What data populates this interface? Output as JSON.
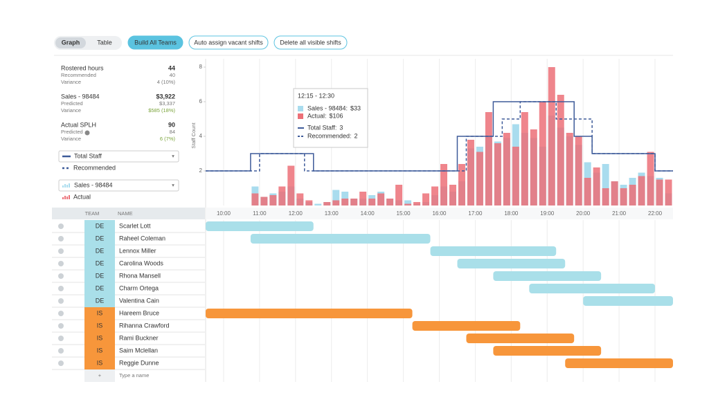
{
  "toolbar": {
    "tabs": [
      "Graph",
      "Table"
    ],
    "buttons": [
      "Build All Teams",
      "Auto assign vacant shifts",
      "Delete all visible shifts"
    ]
  },
  "summary": [
    {
      "label": "Rostered hours",
      "value": "44",
      "rows": [
        {
          "label": "Recommended",
          "value": "40"
        },
        {
          "label": "Variance",
          "value": "4 (10%)"
        }
      ]
    },
    {
      "label": "Sales - 98484",
      "value": "$3,922",
      "rows": [
        {
          "label": "Predicted",
          "value": "$3,337"
        },
        {
          "label": "Variance",
          "value": "$585 (18%)",
          "color": "#7aa33a"
        }
      ]
    },
    {
      "label": "Actual SPLH",
      "value": "90",
      "rows": [
        {
          "label": "Predicted",
          "value": "84"
        },
        {
          "label": "Variance",
          "value": "6 (7%)",
          "color": "#7aa33a"
        }
      ]
    }
  ],
  "chart_data": {
    "type": "bar",
    "y_label": "Staff Count",
    "ylim": [
      0,
      8
    ],
    "yticks": [
      2,
      4,
      6,
      8
    ],
    "xlim": [
      9.5,
      22.5
    ],
    "xticks": [
      {
        "value": 10,
        "label": "10:00"
      },
      {
        "value": 11,
        "label": "11:00"
      },
      {
        "value": 12,
        "label": "12:00"
      },
      {
        "value": 13,
        "label": "13:00"
      },
      {
        "value": 14,
        "label": "14:00"
      },
      {
        "value": 15,
        "label": "15:00"
      },
      {
        "value": 16,
        "label": "16:00"
      },
      {
        "value": 17,
        "label": "17:00"
      },
      {
        "value": 18,
        "label": "18:00"
      },
      {
        "value": 19,
        "label": "19:00"
      },
      {
        "value": 20,
        "label": "20:00"
      },
      {
        "value": 21,
        "label": "21:00"
      },
      {
        "value": 22,
        "label": "22:00"
      }
    ],
    "x": [
      10.75,
      11,
      11.25,
      11.5,
      11.75,
      12,
      12.25,
      12.5,
      12.75,
      13,
      13.25,
      13.5,
      13.75,
      14,
      14.25,
      14.5,
      14.75,
      15,
      15.25,
      15.5,
      15.75,
      16,
      16.25,
      16.5,
      16.75,
      17,
      17.25,
      17.5,
      17.75,
      18,
      18.25,
      18.5,
      18.75,
      19,
      19.25,
      19.5,
      19.75,
      20,
      20.25,
      20.5,
      20.75,
      21,
      21.25,
      21.5,
      21.75,
      22,
      22.25
    ],
    "series": [
      {
        "name": "Sales - 98484",
        "color": "#a9dcee",
        "values": [
          1.1,
          0.5,
          0.7,
          0.8,
          1.1,
          0.4,
          0.2,
          0.1,
          0.2,
          0.9,
          0.8,
          0.4,
          0.4,
          0.6,
          0.8,
          0.4,
          0.3,
          0.3,
          0.1,
          0.2,
          0.6,
          1.1,
          0.8,
          1.4,
          3.3,
          3.4,
          4.0,
          3.7,
          3.9,
          4.7,
          4.2,
          3.9,
          3.4,
          5.2,
          4.5,
          4.0,
          3.5,
          2.5,
          1.9,
          2.4,
          1.4,
          1.2,
          1.6,
          1.9,
          1.7,
          1.6,
          0.7
        ]
      },
      {
        "name": "Actual",
        "color": "#ec7078",
        "values": [
          0.7,
          0.5,
          0.6,
          1.1,
          2.3,
          0.7,
          0.3,
          0,
          0.2,
          0.3,
          0.4,
          0.4,
          0.8,
          0.4,
          0.7,
          0.4,
          1.2,
          0.1,
          0.2,
          0.7,
          1.1,
          2.4,
          1.2,
          2.4,
          3.8,
          3.1,
          5.4,
          3.6,
          4.2,
          3.4,
          5.4,
          4.4,
          6.0,
          8,
          6.4,
          4.2,
          4.0,
          1.6,
          2.2,
          1.0,
          1.4,
          1.0,
          1.2,
          1.7,
          3.1,
          1.5,
          1.5
        ]
      }
    ],
    "step_series": [
      {
        "name": "Total Staff",
        "color": "#3d5a99",
        "dashed": false,
        "x": [
          9.5,
          10.75,
          12.5,
          16.5,
          17.5,
          19.75,
          20.25,
          22,
          22.5
        ],
        "values": [
          2,
          3,
          2,
          4,
          6,
          4,
          3,
          2,
          2
        ]
      },
      {
        "name": "Recommended",
        "color": "#3d5a99",
        "dashed": true,
        "x": [
          9.5,
          11,
          12.25,
          16.75,
          17.75,
          18.25,
          19.25,
          20.25,
          22,
          22.5
        ],
        "values": [
          2,
          3,
          2,
          4,
          5,
          6,
          5,
          3,
          2,
          2
        ]
      }
    ],
    "tooltip": {
      "title": "12:15 - 12:30",
      "items": [
        {
          "label": "Sales - 98484:",
          "value": "$33"
        },
        {
          "label": "Actual:",
          "value": "$106"
        },
        {
          "label": "Total Staff:",
          "value": "3"
        },
        {
          "label": "Recommended:",
          "value": "2"
        }
      ]
    }
  },
  "table": {
    "headers": [
      "TEAM",
      "NAME"
    ],
    "add": "+",
    "placeholder": "Type a name",
    "rows": [
      {
        "team": "DE",
        "name": "Scarlet Lott",
        "color": "#a9dfe9",
        "start": 9.5,
        "end": 12.5
      },
      {
        "team": "DE",
        "name": "Raheel Coleman",
        "color": "#a9dfe9",
        "start": 10.75,
        "end": 15.75
      },
      {
        "team": "DE",
        "name": "Lennox Miller",
        "color": "#a9dfe9",
        "start": 15.75,
        "end": 19.25
      },
      {
        "team": "DE",
        "name": "Carolina Woods",
        "color": "#a9dfe9",
        "start": 16.5,
        "end": 19.5
      },
      {
        "team": "DE",
        "name": "Rhona Mansell",
        "color": "#a9dfe9",
        "start": 17.5,
        "end": 20.5
      },
      {
        "team": "DE",
        "name": "Charm Ortega",
        "color": "#a9dfe9",
        "start": 18.5,
        "end": 22
      },
      {
        "team": "DE",
        "name": "Valentina Cain",
        "color": "#a9dfe9",
        "start": 20,
        "end": 22.5
      },
      {
        "team": "IS",
        "name": "Hareem Bruce",
        "color": "#f7963b",
        "start": 9.5,
        "end": 15.25
      },
      {
        "team": "IS",
        "name": "Rihanna Crawford",
        "color": "#f7963b",
        "start": 15.25,
        "end": 18.25
      },
      {
        "team": "IS",
        "name": "Rami Buckner",
        "color": "#f7963b",
        "start": 16.75,
        "end": 19.75
      },
      {
        "team": "IS",
        "name": "Saim Mclellan",
        "color": "#f7963b",
        "start": 17.5,
        "end": 20.5
      },
      {
        "team": "IS",
        "name": "Reggie Dunne",
        "color": "#f7963b",
        "start": 19.5,
        "end": 22.5
      }
    ]
  }
}
